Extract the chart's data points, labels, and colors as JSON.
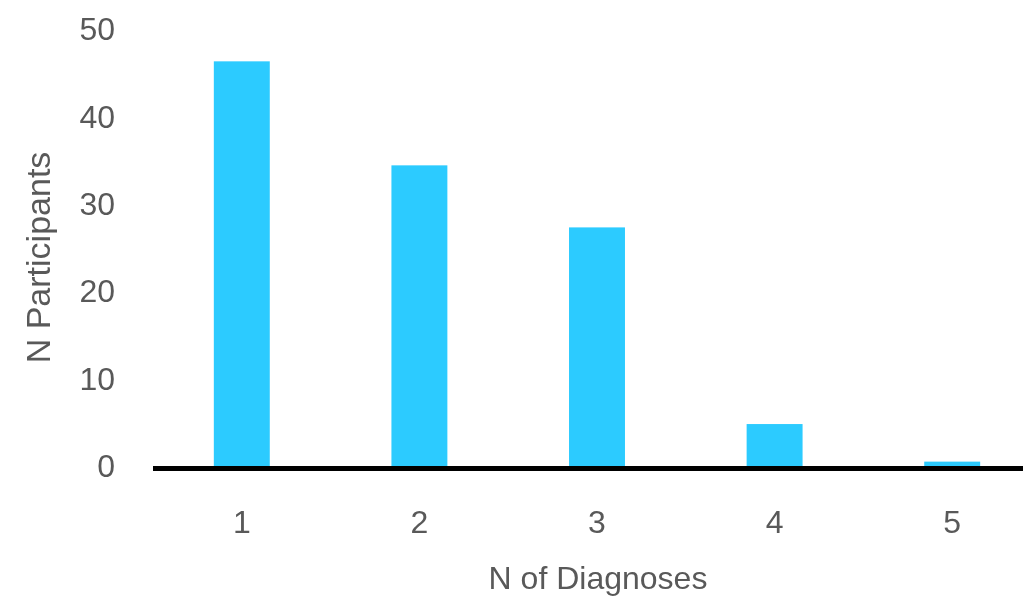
{
  "chart_data": {
    "type": "bar",
    "xlabel": "N of Diagnoses",
    "ylabel": "N Participants",
    "categories": [
      "1",
      "2",
      "3",
      "4",
      "5"
    ],
    "values": [
      46.3,
      34.4,
      27.3,
      4.8,
      0.5
    ],
    "color": "#2ccbff",
    "ylim": [
      0,
      50
    ],
    "yticks": [
      0,
      10,
      20,
      30,
      40,
      50
    ],
    "grid": false
  }
}
